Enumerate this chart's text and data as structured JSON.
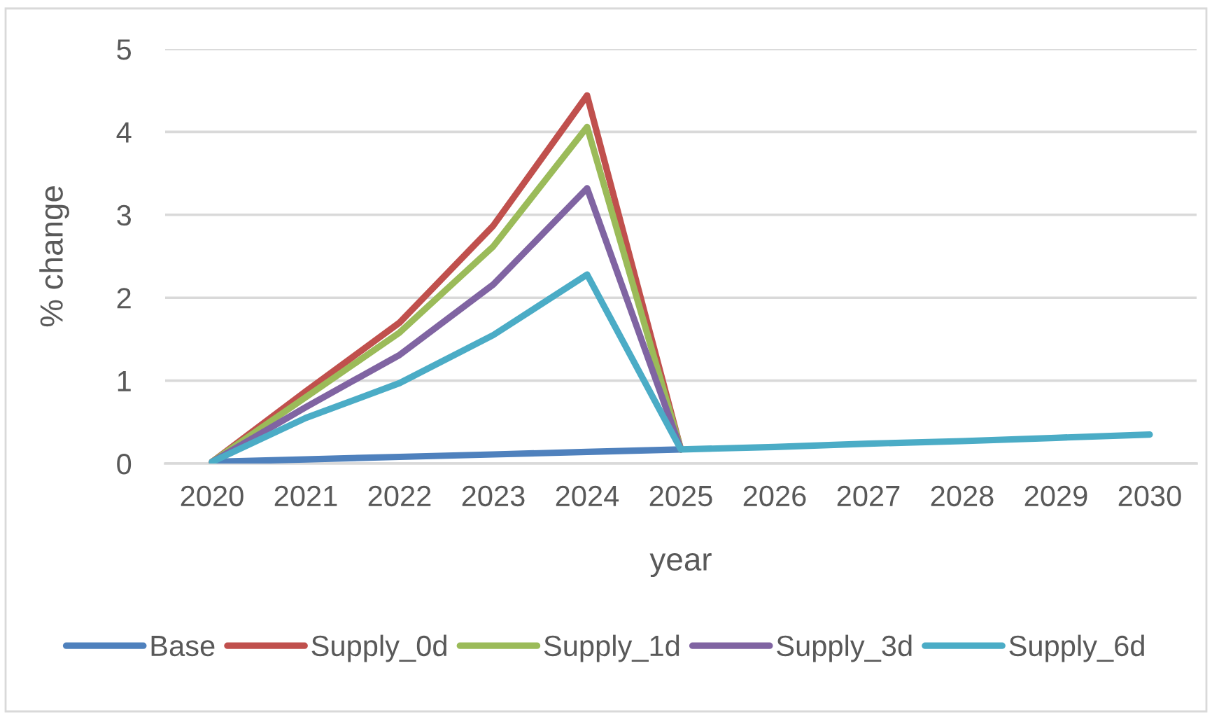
{
  "chart_data": {
    "type": "line",
    "xlabel": "year",
    "ylabel": "% change",
    "categories": [
      "2020",
      "2021",
      "2022",
      "2023",
      "2024",
      "2025",
      "2026",
      "2027",
      "2028",
      "2029",
      "2030"
    ],
    "ylim": [
      0,
      5
    ],
    "yticks": [
      0,
      1,
      2,
      3,
      4,
      5
    ],
    "grid": "y",
    "legend": "bottom",
    "marker": "none",
    "line_style": "solid",
    "series": [
      {
        "name": "Base",
        "color": "#4f81bd",
        "values": [
          0.02,
          0.05,
          0.08,
          0.11,
          0.14,
          0.17,
          null,
          null,
          null,
          null,
          null
        ]
      },
      {
        "name": "Supply_0d",
        "color": "#c0504d",
        "values": [
          0.02,
          0.87,
          1.7,
          2.87,
          4.44,
          0.17,
          null,
          null,
          null,
          null,
          null
        ]
      },
      {
        "name": "Supply_1d",
        "color": "#9bbb59",
        "values": [
          0.02,
          0.8,
          1.58,
          2.62,
          4.06,
          0.17,
          null,
          null,
          null,
          null,
          null
        ]
      },
      {
        "name": "Supply_3d",
        "color": "#8064a2",
        "values": [
          0.02,
          0.68,
          1.31,
          2.16,
          3.32,
          0.17,
          null,
          null,
          null,
          null,
          null
        ]
      },
      {
        "name": "Supply_6d",
        "color": "#4bacc6",
        "values": [
          0.02,
          0.55,
          0.97,
          1.55,
          2.28,
          0.17,
          0.2,
          0.24,
          0.27,
          0.31,
          0.35
        ]
      }
    ]
  }
}
